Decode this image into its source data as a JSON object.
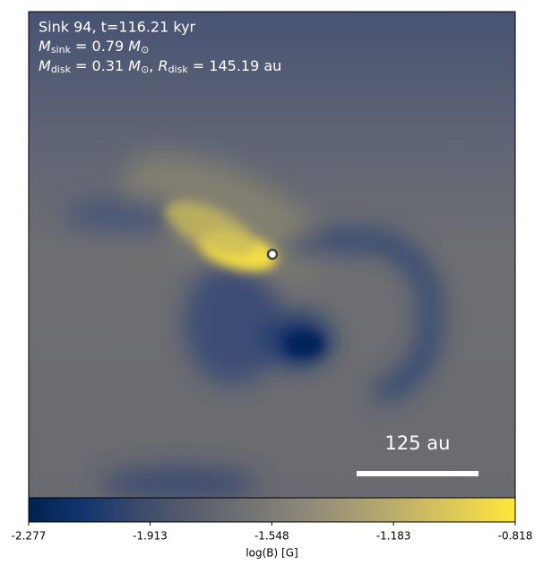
{
  "chart_data": {
    "type": "image",
    "annotation": {
      "line1": "Sink 94, t=116.21 kyr",
      "line2": {
        "symbol": "M",
        "sub": "sink",
        "rest": " = 0.79 ",
        "unit": "M",
        "unit_sub": "⊙"
      },
      "line3": {
        "symbol": "M",
        "sub": "disk",
        "rest": " = 0.31 ",
        "unit": "M",
        "unit_sub": "⊙",
        "sep": ", ",
        "symbol2": "R",
        "sub2": "disk",
        "rest2": " = 145.19 au"
      }
    },
    "scale_bar": "125 au",
    "colorbar": {
      "label": "log(B) [G]",
      "colormap": "cividis",
      "lim": [
        -2.277,
        -0.818
      ],
      "ticks": [
        -2.277,
        -1.913,
        -1.548,
        -1.183,
        -0.818
      ]
    }
  }
}
